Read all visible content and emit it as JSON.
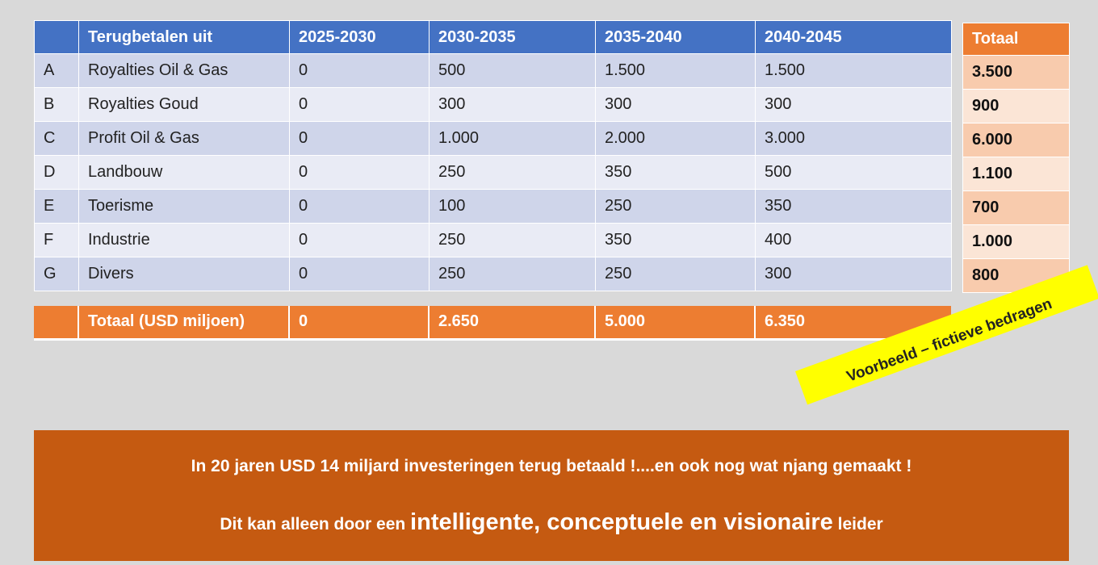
{
  "table": {
    "headers": [
      "",
      "Terugbetalen uit",
      "2025-2030",
      "2030-2035",
      "2035-2040",
      "2040-2045"
    ],
    "rows": [
      [
        "A",
        "Royalties Oil & Gas",
        "0",
        "500",
        "1.500",
        "1.500"
      ],
      [
        "B",
        "Royalties Goud",
        "0",
        "300",
        "300",
        "300"
      ],
      [
        "C",
        "Profit Oil & Gas",
        "0",
        "1.000",
        "2.000",
        "3.000"
      ],
      [
        "D",
        "Landbouw",
        "0",
        "250",
        "350",
        "500"
      ],
      [
        "E",
        "Toerisme",
        "0",
        "100",
        "250",
        "350"
      ],
      [
        "F",
        "Industrie",
        "0",
        "250",
        "350",
        "400"
      ],
      [
        "G",
        "Divers",
        "0",
        "250",
        "250",
        "300"
      ]
    ],
    "total_row": [
      "",
      "Totaal (USD miljoen)",
      "0",
      "2.650",
      "5.000",
      "6.350"
    ]
  },
  "totals": {
    "header": "Totaal",
    "values": [
      "3.500",
      "900",
      "6.000",
      "1.100",
      "700",
      "1.000",
      "800"
    ]
  },
  "stamp": "Voorbeeld – fictieve bedragen",
  "banner": {
    "line1": "In 20 jaren USD 14 miljard investeringen terug betaald !....en ook nog wat njang gemaakt !",
    "line2_prefix": "Dit kan alleen door een ",
    "line2_emphasis": "intelligente, conceptuele en visionaire",
    "line2_suffix": " leider"
  },
  "colors": {
    "header_blue": "#4472c4",
    "row_dark": "#cfd5ea",
    "row_light": "#e9ebf5",
    "orange": "#ed7d31",
    "banner": "#c55a11",
    "stamp_yellow": "#ffff00"
  }
}
